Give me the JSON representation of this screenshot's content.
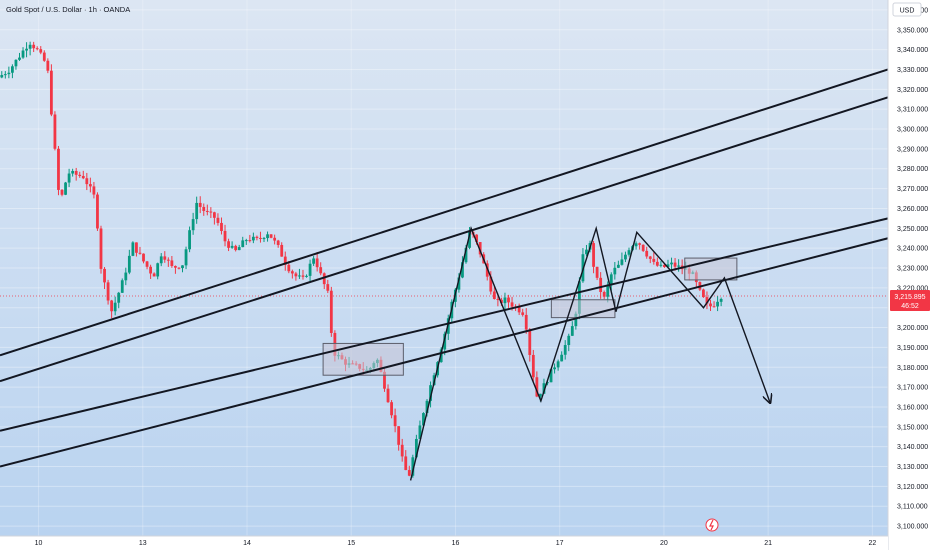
{
  "header": {
    "title": "Gold Spot / U.S. Dollar · 1h · OANDA",
    "currency": "USD"
  },
  "price_tag": {
    "price": "3,215.895",
    "countdown": "46:52"
  },
  "colors": {
    "bg_top": "#dce6f3",
    "bg_bottom": "#b9d3f0",
    "up": "#089981",
    "down": "#f23645",
    "line": "#131722",
    "box_fill": "#c7c4d6",
    "box_stroke": "#5b5e6b",
    "price_tag": "#f23645",
    "axis_text": "#131722",
    "axis_bg": "#ffffff"
  },
  "chart_data": {
    "type": "candlestick",
    "title": "Gold Spot / U.S. Dollar · 1h · OANDA",
    "y_unit": "USD",
    "ylim": [
      3095,
      3365
    ],
    "y_ticks": [
      "3,100.000",
      "3,110.000",
      "3,120.000",
      "3,130.000",
      "3,140.000",
      "3,150.000",
      "3,160.000",
      "3,170.000",
      "3,180.000",
      "3,190.000",
      "3,200.000",
      "3,210.000",
      "3,220.000",
      "3,230.000",
      "3,240.000",
      "3,250.000",
      "3,260.000",
      "3,270.000",
      "3,280.000",
      "3,290.000",
      "3,300.000",
      "3,310.000",
      "3,320.000",
      "3,330.000",
      "3,340.000",
      "3,350.000",
      "3,360.000"
    ],
    "x_ticks": [
      {
        "label": "10",
        "x": 4
      },
      {
        "label": "13",
        "x": 14
      },
      {
        "label": "14",
        "x": 24
      },
      {
        "label": "15",
        "x": 34
      },
      {
        "label": "16",
        "x": 44
      },
      {
        "label": "17",
        "x": 54
      },
      {
        "label": "20",
        "x": 64
      },
      {
        "label": "21",
        "x": 74
      },
      {
        "label": "22",
        "x": 84
      }
    ],
    "xlim": [
      0.3,
      85.5
    ],
    "anchors": [
      [
        0.3,
        3326
      ],
      [
        1.4,
        3330
      ],
      [
        2.5,
        3338
      ],
      [
        3.3,
        3344
      ],
      [
        4.0,
        3340
      ],
      [
        5.0,
        3332
      ],
      [
        6.2,
        3262
      ],
      [
        7.0,
        3278
      ],
      [
        8.5,
        3276
      ],
      [
        9.6,
        3265
      ],
      [
        10.2,
        3228
      ],
      [
        11.2,
        3208
      ],
      [
        12.3,
        3224
      ],
      [
        13.2,
        3242
      ],
      [
        14.4,
        3232
      ],
      [
        15.2,
        3226
      ],
      [
        16.0,
        3238
      ],
      [
        17.0,
        3230
      ],
      [
        18.0,
        3232
      ],
      [
        19.3,
        3263
      ],
      [
        20.2,
        3258
      ],
      [
        21.2,
        3255
      ],
      [
        22.0,
        3244
      ],
      [
        23.0,
        3238
      ],
      [
        24.2,
        3245
      ],
      [
        25.2,
        3244
      ],
      [
        26.2,
        3248
      ],
      [
        27.2,
        3240
      ],
      [
        28.0,
        3231
      ],
      [
        28.8,
        3226
      ],
      [
        29.6,
        3224
      ],
      [
        30.6,
        3236
      ],
      [
        31.4,
        3224
      ],
      [
        32.0,
        3216
      ],
      [
        32.4,
        3188
      ],
      [
        33.2,
        3184
      ],
      [
        34.0,
        3181
      ],
      [
        35.0,
        3180
      ],
      [
        35.8,
        3178
      ],
      [
        36.6,
        3185
      ],
      [
        37.3,
        3172
      ],
      [
        38.0,
        3158
      ],
      [
        38.6,
        3145
      ],
      [
        39.2,
        3130
      ],
      [
        39.7,
        3125
      ],
      [
        40.4,
        3142
      ],
      [
        41.2,
        3160
      ],
      [
        42.0,
        3175
      ],
      [
        43.0,
        3194
      ],
      [
        43.8,
        3212
      ],
      [
        44.6,
        3228
      ],
      [
        45.6,
        3249
      ],
      [
        46.4,
        3240
      ],
      [
        47.2,
        3226
      ],
      [
        48.0,
        3212
      ],
      [
        49.0,
        3214
      ],
      [
        50.0,
        3210
      ],
      [
        50.8,
        3207
      ],
      [
        51.4,
        3183
      ],
      [
        52.0,
        3165
      ],
      [
        52.8,
        3172
      ],
      [
        53.6,
        3180
      ],
      [
        54.4,
        3188
      ],
      [
        55.2,
        3196
      ],
      [
        55.8,
        3210
      ],
      [
        56.3,
        3234
      ],
      [
        57.0,
        3244
      ],
      [
        57.6,
        3226
      ],
      [
        58.4,
        3214
      ],
      [
        59.2,
        3228
      ],
      [
        60.0,
        3232
      ],
      [
        60.8,
        3240
      ],
      [
        61.6,
        3244
      ],
      [
        62.4,
        3238
      ],
      [
        63.2,
        3232
      ],
      [
        64.0,
        3230
      ],
      [
        64.8,
        3232
      ],
      [
        65.8,
        3230
      ],
      [
        66.8,
        3228
      ],
      [
        67.6,
        3218
      ],
      [
        68.4,
        3210
      ],
      [
        69.0,
        3212
      ],
      [
        69.6,
        3216
      ]
    ],
    "shapes": {
      "channel_lines": [
        [
          [
            0.3,
            3186
          ],
          [
            85.5,
            3330
          ]
        ],
        [
          [
            0.3,
            3173
          ],
          [
            85.5,
            3316
          ]
        ],
        [
          [
            0.3,
            3148
          ],
          [
            85.5,
            3255
          ]
        ],
        [
          [
            0.3,
            3130
          ],
          [
            85.5,
            3245
          ]
        ]
      ],
      "pattern_polyline": [
        [
          39.7,
          3123
        ],
        [
          45.5,
          3250
        ],
        [
          52.2,
          3163
        ],
        [
          57.5,
          3250
        ],
        [
          59.4,
          3208
        ],
        [
          61.4,
          3248
        ],
        [
          67.8,
          3210
        ],
        [
          69.8,
          3225
        ],
        [
          74.2,
          3162
        ]
      ],
      "arrow_head": [
        74.2,
        3162
      ],
      "boxes": [
        {
          "x0": 31.3,
          "x1": 39.0,
          "y0": 3176,
          "y1": 3192
        },
        {
          "x0": 53.2,
          "x1": 59.3,
          "y0": 3205,
          "y1": 3214
        },
        {
          "x0": 66.0,
          "x1": 71.0,
          "y0": 3224,
          "y1": 3235
        }
      ]
    }
  }
}
